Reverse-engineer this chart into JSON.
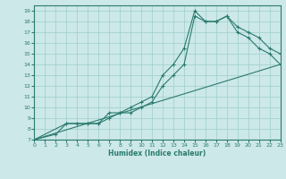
{
  "xlabel": "Humidex (Indice chaleur)",
  "bg_color": "#cce8e8",
  "line_color": "#2a7a6e",
  "grid_color": "#9ecece",
  "line1_x": [
    0,
    2,
    3,
    4,
    5,
    6,
    7,
    8,
    9,
    10,
    11,
    12,
    13,
    14,
    15,
    16,
    17,
    18,
    19,
    20,
    21,
    22,
    23
  ],
  "line1_y": [
    7,
    7.5,
    8.5,
    8.5,
    8.5,
    8.5,
    9.5,
    9.5,
    10.0,
    10.5,
    11.0,
    13.0,
    14.0,
    15.5,
    19.0,
    18.0,
    18.0,
    18.5,
    17.0,
    16.5,
    15.5,
    15.0,
    14.0
  ],
  "line2_x": [
    0,
    3,
    4,
    5,
    6,
    7,
    8,
    9,
    10,
    11,
    12,
    13,
    14,
    15,
    16,
    17,
    18,
    19,
    20,
    21,
    22,
    23
  ],
  "line2_y": [
    7,
    8.5,
    8.5,
    8.5,
    8.5,
    9.0,
    9.5,
    9.5,
    10.0,
    10.5,
    12.0,
    13.0,
    14.0,
    18.5,
    18.0,
    18.0,
    18.5,
    17.5,
    17.0,
    16.5,
    15.5,
    15.0
  ],
  "line3_x": [
    0,
    23
  ],
  "line3_y": [
    7,
    14.0
  ],
  "ylim_min": 7,
  "ylim_max": 19.5,
  "xlim_min": 0,
  "xlim_max": 23,
  "yticks": [
    7,
    8,
    9,
    10,
    11,
    12,
    13,
    14,
    15,
    16,
    17,
    18,
    19
  ],
  "xticks": [
    0,
    1,
    2,
    3,
    4,
    5,
    6,
    7,
    8,
    9,
    10,
    11,
    12,
    13,
    14,
    15,
    16,
    17,
    18,
    19,
    20,
    21,
    22,
    23
  ]
}
